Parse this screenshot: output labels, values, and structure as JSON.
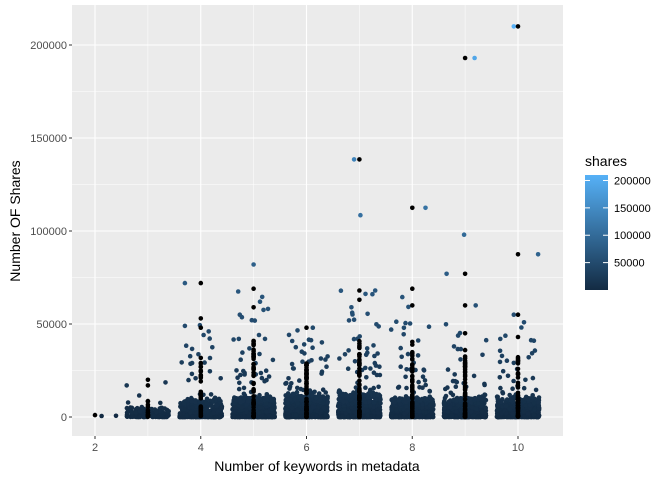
{
  "chart_data": {
    "type": "scatter",
    "title": "",
    "xlabel": "Number of keywords in metadata",
    "ylabel": "Number OF Shares",
    "xlim": [
      1.6,
      10.85
    ],
    "ylim": [
      -10000,
      221000
    ],
    "x_ticks": [
      2,
      4,
      6,
      8,
      10
    ],
    "x_tick_labels": [
      "2",
      "4",
      "6",
      "8",
      "10"
    ],
    "y_ticks": [
      0,
      50000,
      100000,
      150000,
      200000
    ],
    "y_tick_labels": [
      "0",
      "50000",
      "100000",
      "150000",
      "200000"
    ],
    "grid": true,
    "legend": {
      "title": "shares",
      "placement": "right",
      "type": "colorbar",
      "limits": [
        0,
        210000
      ],
      "breaks": [
        50000,
        100000,
        150000,
        200000
      ],
      "labels": [
        "50000",
        "100000",
        "150000",
        "200000"
      ],
      "low_color": "#132B43",
      "high_color": "#56B1F7"
    },
    "point_overlay_color": "#000000",
    "clusters": [
      {
        "keywords": 2,
        "count": 2,
        "typical_max": 1500,
        "tail_max": 1500
      },
      {
        "keywords": 3,
        "count": 160,
        "typical_max": 5000,
        "tail_max": 20000
      },
      {
        "keywords": 4,
        "count": 450,
        "typical_max": 9000,
        "tail_max": 53000
      },
      {
        "keywords": 5,
        "count": 650,
        "typical_max": 10000,
        "tail_max": 69000
      },
      {
        "keywords": 6,
        "count": 750,
        "typical_max": 11000,
        "tail_max": 48000
      },
      {
        "keywords": 7,
        "count": 800,
        "typical_max": 12000,
        "tail_max": 68000
      },
      {
        "keywords": 8,
        "count": 650,
        "typical_max": 10000,
        "tail_max": 69000
      },
      {
        "keywords": 9,
        "count": 600,
        "typical_max": 10000,
        "tail_max": 60000
      },
      {
        "keywords": 10,
        "count": 550,
        "typical_max": 10000,
        "tail_max": 55000
      }
    ],
    "outliers": [
      {
        "x": 9.92,
        "y": 210000
      },
      {
        "x": 9.18,
        "y": 193000
      },
      {
        "x": 6.9,
        "y": 138500
      },
      {
        "x": 7.02,
        "y": 108500
      },
      {
        "x": 8.25,
        "y": 112500
      },
      {
        "x": 8.98,
        "y": 98000
      },
      {
        "x": 10.38,
        "y": 87500
      },
      {
        "x": 8.65,
        "y": 77000
      },
      {
        "x": 5.0,
        "y": 82000
      },
      {
        "x": 3.7,
        "y": 72000
      },
      {
        "x": 7.3,
        "y": 68000
      },
      {
        "x": 9.2,
        "y": 60000
      },
      {
        "x": 6.12,
        "y": 48000
      },
      {
        "x": 4.15,
        "y": 46000
      },
      {
        "x": 3.7,
        "y": 49000
      },
      {
        "x": 4.72,
        "y": 42000
      },
      {
        "x": 9.92,
        "y": 55000
      },
      {
        "x": 10.3,
        "y": 41000
      },
      {
        "x": 2.6,
        "y": 17000
      },
      {
        "x": 5.12,
        "y": 62000
      },
      {
        "x": 6.85,
        "y": 59000
      }
    ],
    "overlay_points": [
      {
        "x": 10,
        "y": 210000
      },
      {
        "x": 9,
        "y": 193000
      },
      {
        "x": 7,
        "y": 138500
      },
      {
        "x": 8,
        "y": 112500
      },
      {
        "x": 10,
        "y": 87500
      },
      {
        "x": 9,
        "y": 77000
      },
      {
        "x": 4,
        "y": 72000
      },
      {
        "x": 5,
        "y": 69000
      },
      {
        "x": 8,
        "y": 69000
      },
      {
        "x": 7,
        "y": 68000
      },
      {
        "x": 7,
        "y": 63000
      },
      {
        "x": 9,
        "y": 60000
      },
      {
        "x": 5,
        "y": 59000
      },
      {
        "x": 8,
        "y": 60000
      },
      {
        "x": 4,
        "y": 53000
      },
      {
        "x": 10,
        "y": 55000
      },
      {
        "x": 6,
        "y": 48000
      },
      {
        "x": 3,
        "y": 20000
      },
      {
        "x": 3,
        "y": 17000
      },
      {
        "x": 2,
        "y": 1000
      },
      {
        "x": 10,
        "y": 43000
      },
      {
        "x": 9,
        "y": 45000
      },
      {
        "x": 4,
        "y": 48000
      }
    ]
  }
}
